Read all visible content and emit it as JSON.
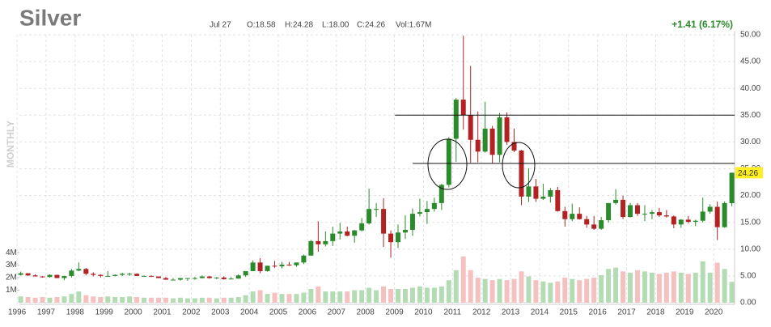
{
  "chart_data": {
    "type": "candlestick",
    "title": "Silver",
    "date": "Jul 27",
    "ohlc": [
      "O:18.58",
      "H:24.28",
      "L:18.00",
      "C:24.26"
    ],
    "volume_label": "Vol:1.67M",
    "change": "+1.41 (6.17%)",
    "period": "MONTHLY",
    "last_price": 24.26,
    "up_color": "#2b8a2b",
    "down_color": "#b22222",
    "volume_up_color": "#b4dcb4",
    "volume_down_color": "#f4c0c0",
    "grid": true,
    "xlim": [
      1996.08,
      2020.72
    ],
    "xticks": [
      1996,
      1997,
      1998,
      1999,
      2000,
      2001,
      2002,
      2003,
      2004,
      2005,
      2006,
      2007,
      2008,
      2009,
      2010,
      2011,
      2012,
      2013,
      2014,
      2015,
      2016,
      2017,
      2018,
      2019,
      2020
    ],
    "ylim": [
      0,
      50
    ],
    "yticks": [
      {
        "value": 0,
        "label": "0.00"
      },
      {
        "value": 5,
        "label": "5.00"
      },
      {
        "value": 10,
        "label": "10.00"
      },
      {
        "value": 15,
        "label": "15.00"
      },
      {
        "value": 20,
        "label": "20.00"
      },
      {
        "value": 25,
        "label": "25.00"
      },
      {
        "value": 30,
        "label": "30.00"
      },
      {
        "value": 35,
        "label": "35.00"
      },
      {
        "value": 40,
        "label": "40.00"
      },
      {
        "value": 45,
        "label": "45.00"
      },
      {
        "value": 50,
        "label": "50.00"
      }
    ],
    "y2lim": [
      0,
      21400000
    ],
    "y2ticks": [
      {
        "value": 1000000,
        "label": "1M"
      },
      {
        "value": 2000000,
        "label": "2M"
      },
      {
        "value": 3000000,
        "label": "3M"
      },
      {
        "value": 4000000,
        "label": "4M"
      }
    ],
    "levels": [
      {
        "value": 35,
        "start": 2009.02
      },
      {
        "value": 26,
        "start": 2009.63
      }
    ],
    "x": [
      1996.125,
      1996.375,
      1996.625,
      1996.875,
      1997.125,
      1997.375,
      1997.625,
      1997.875,
      1998.125,
      1998.375,
      1998.625,
      1998.875,
      1999.125,
      1999.375,
      1999.625,
      1999.875,
      2000.125,
      2000.375,
      2000.625,
      2000.875,
      2001.125,
      2001.375,
      2001.625,
      2001.875,
      2002.125,
      2002.375,
      2002.625,
      2002.875,
      2003.125,
      2003.375,
      2003.625,
      2003.875,
      2004.125,
      2004.375,
      2004.625,
      2004.875,
      2005.125,
      2005.375,
      2005.625,
      2005.875,
      2006.125,
      2006.375,
      2006.625,
      2006.875,
      2007.125,
      2007.375,
      2007.625,
      2007.875,
      2008.125,
      2008.375,
      2008.625,
      2008.875,
      2009.125,
      2009.375,
      2009.625,
      2009.875,
      2010.125,
      2010.375,
      2010.625,
      2010.875,
      2011.125,
      2011.375,
      2011.625,
      2011.875,
      2012.125,
      2012.375,
      2012.625,
      2012.875,
      2013.125,
      2013.375,
      2013.625,
      2013.875,
      2014.125,
      2014.375,
      2014.625,
      2014.875,
      2015.125,
      2015.375,
      2015.625,
      2015.875,
      2016.125,
      2016.375,
      2016.625,
      2016.875,
      2017.125,
      2017.375,
      2017.625,
      2017.875,
      2018.125,
      2018.375,
      2018.625,
      2018.875,
      2019.125,
      2019.375,
      2019.625,
      2019.875,
      2020.125,
      2020.375,
      2020.625
    ],
    "open": [
      5.2,
      5.5,
      5.1,
      4.9,
      4.8,
      5.2,
      4.6,
      5.0,
      6.0,
      6.3,
      5.4,
      5.2,
      5.0,
      5.0,
      5.2,
      5.4,
      5.4,
      5.0,
      5.0,
      4.9,
      4.6,
      4.3,
      4.3,
      4.6,
      4.6,
      4.6,
      4.9,
      4.6,
      4.7,
      4.4,
      4.5,
      5.1,
      5.9,
      7.5,
      5.9,
      6.9,
      6.8,
      7.1,
      7.0,
      7.5,
      8.8,
      11.5,
      10.9,
      11.5,
      12.9,
      13.3,
      12.5,
      13.5,
      14.8,
      17.5,
      17.5,
      12.9,
      11.3,
      13.1,
      13.6,
      16.6,
      16.9,
      17.5,
      18.6,
      22.0,
      30.6,
      37.9,
      35.0,
      30.4,
      28.2,
      32.5,
      27.6,
      34.6,
      30.0,
      28.4,
      19.8,
      21.7,
      19.4,
      19.8,
      21.0,
      17.1,
      15.6,
      16.6,
      15.6,
      14.6,
      13.8,
      15.4,
      18.6,
      19.2,
      16.0,
      18.2,
      16.6,
      16.6,
      16.9,
      16.3,
      16.1,
      14.6,
      15.5,
      15.1,
      15.3,
      17.0,
      17.9,
      14.1,
      18.58
    ],
    "high": [
      5.8,
      5.5,
      5.3,
      5.0,
      5.3,
      5.2,
      5.0,
      6.3,
      7.5,
      6.5,
      5.7,
      5.3,
      5.9,
      5.3,
      5.6,
      5.6,
      5.5,
      5.1,
      5.1,
      4.9,
      4.8,
      4.6,
      4.6,
      4.6,
      4.8,
      5.1,
      5.0,
      4.8,
      4.9,
      4.8,
      5.3,
      5.9,
      7.9,
      8.3,
      6.9,
      7.8,
      7.6,
      7.6,
      7.5,
      9.0,
      11.7,
      15.2,
      13.3,
      14.2,
      14.9,
      14.2,
      13.6,
      15.8,
      21.3,
      18.6,
      19.5,
      13.5,
      14.6,
      16.3,
      17.6,
      19.4,
      19.0,
      19.6,
      22.2,
      30.9,
      38.2,
      49.8,
      44.2,
      35.7,
      37.5,
      33.0,
      35.4,
      35.5,
      32.5,
      28.5,
      25.1,
      23.1,
      22.2,
      21.4,
      21.6,
      17.9,
      18.5,
      17.8,
      16.2,
      16.2,
      16.0,
      18.6,
      21.2,
      20.0,
      18.6,
      18.6,
      18.2,
      17.3,
      17.7,
      17.3,
      16.3,
      15.6,
      16.2,
      15.5,
      19.6,
      18.4,
      18.9,
      18.9,
      24.28
    ],
    "low": [
      5.1,
      5.0,
      4.9,
      4.7,
      4.7,
      4.6,
      4.2,
      4.7,
      5.9,
      5.1,
      4.9,
      4.7,
      4.9,
      4.9,
      5.0,
      5.0,
      5.0,
      4.9,
      4.8,
      4.6,
      4.3,
      4.2,
      4.1,
      4.1,
      4.3,
      4.5,
      4.5,
      4.4,
      4.3,
      4.4,
      4.5,
      4.8,
      5.9,
      5.5,
      5.8,
      6.5,
      6.4,
      6.9,
      6.7,
      7.2,
      8.8,
      9.5,
      10.5,
      10.6,
      11.8,
      12.4,
      11.2,
      13.3,
      14.6,
      16.0,
      10.4,
      8.4,
      10.2,
      11.9,
      12.5,
      16.1,
      14.7,
      17.0,
      17.3,
      21.5,
      26.3,
      32.3,
      26.1,
      26.2,
      28.0,
      26.0,
      26.2,
      29.5,
      28.1,
      18.2,
      18.8,
      18.8,
      19.2,
      18.7,
      17.0,
      14.2,
      15.2,
      15.5,
      14.0,
      13.6,
      13.6,
      15.0,
      18.3,
      15.6,
      15.9,
      16.2,
      15.2,
      15.6,
      16.0,
      15.9,
      13.9,
      14.0,
      14.8,
      14.3,
      15.0,
      16.6,
      11.7,
      14.0,
      18
    ],
    "close": [
      5.5,
      5.1,
      4.9,
      4.8,
      5.2,
      4.6,
      5.0,
      6.0,
      6.3,
      5.4,
      5.2,
      5.0,
      5.0,
      5.2,
      5.4,
      5.4,
      5.0,
      5.0,
      4.9,
      4.6,
      4.3,
      4.3,
      4.6,
      4.6,
      4.6,
      4.9,
      4.6,
      4.7,
      4.4,
      4.5,
      5.1,
      5.9,
      7.5,
      5.9,
      6.9,
      6.8,
      7.1,
      7.0,
      7.5,
      8.8,
      11.5,
      10.9,
      11.5,
      12.9,
      13.3,
      12.5,
      13.5,
      14.8,
      17.5,
      17.5,
      12.9,
      11.3,
      13.1,
      13.6,
      16.6,
      16.9,
      17.5,
      18.6,
      22.0,
      30.6,
      37.9,
      35.0,
      30.4,
      28.2,
      32.5,
      27.6,
      34.6,
      30.0,
      28.4,
      19.8,
      21.7,
      19.4,
      19.8,
      21.0,
      17.1,
      15.6,
      16.6,
      15.6,
      14.6,
      13.8,
      15.4,
      18.6,
      19.2,
      16.0,
      18.2,
      16.6,
      16.6,
      16.9,
      16.3,
      16.1,
      14.6,
      15.5,
      15.1,
      15.3,
      17.0,
      17.9,
      14.1,
      18.6,
      24.26
    ],
    "volume": [
      500000,
      450000,
      400000,
      450000,
      400000,
      450000,
      500000,
      700000,
      900000,
      600000,
      500000,
      450000,
      500000,
      450000,
      450000,
      500000,
      450000,
      400000,
      400000,
      400000,
      400000,
      350000,
      400000,
      350000,
      350000,
      400000,
      400000,
      350000,
      400000,
      400000,
      450000,
      600000,
      900000,
      1000000,
      700000,
      800000,
      700000,
      700000,
      700000,
      800000,
      1100000,
      1300000,
      900000,
      900000,
      900000,
      900000,
      1000000,
      1000000,
      1200000,
      1000000,
      1300000,
      1100000,
      1100000,
      1100000,
      1200000,
      1300000,
      1200000,
      1200000,
      1300000,
      1800000,
      2600000,
      3700000,
      2600000,
      2000000,
      1900000,
      1800000,
      1900000,
      1800000,
      1900000,
      2500000,
      2100000,
      1800000,
      1700000,
      1600000,
      1700000,
      2000000,
      1900000,
      1800000,
      1900000,
      2000000,
      2200000,
      2700000,
      2800000,
      2500000,
      2400000,
      2600000,
      2500000,
      2400000,
      2300000,
      2400000,
      2500000,
      2400000,
      2300000,
      2400000,
      3300000,
      2400000,
      3200000,
      2700000,
      1670000
    ]
  }
}
